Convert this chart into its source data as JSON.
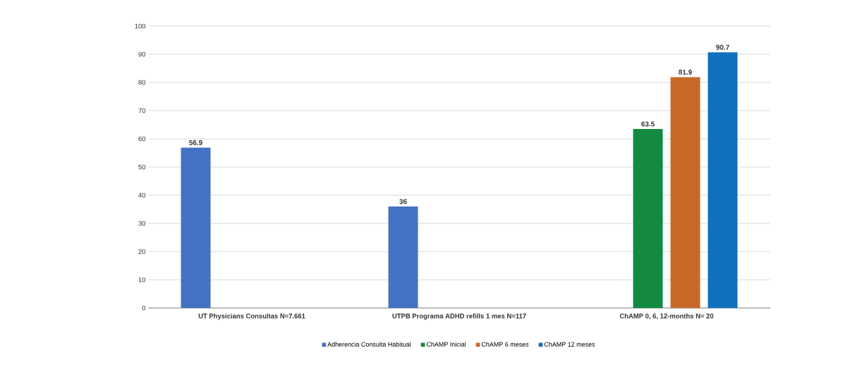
{
  "chart_data": {
    "type": "bar",
    "categories": [
      "UT Physicians Consultas N=7.661",
      "UTPB Programa ADHD refills 1 mes N=117",
      "ChAMP 0, 6, 12-months N= 20"
    ],
    "series": [
      {
        "name": "Adherencia Consulta Habitual",
        "color": "#4472c4",
        "values": [
          56.9,
          36,
          null
        ]
      },
      {
        "name": "ChAMP Inicial",
        "color": "#138a42",
        "values": [
          null,
          null,
          63.5
        ]
      },
      {
        "name": "ChAMP 6 meses",
        "color": "#c8692a",
        "values": [
          null,
          null,
          81.9
        ]
      },
      {
        "name": "ChAMP 12 meses",
        "color": "#1070c0",
        "values": [
          null,
          null,
          90.7
        ]
      }
    ],
    "ylim": [
      0,
      100
    ],
    "yticks": [
      0,
      10,
      20,
      30,
      40,
      50,
      60,
      70,
      80,
      90,
      100
    ],
    "grid": "y",
    "legend": "bottom",
    "data_labels": true
  }
}
